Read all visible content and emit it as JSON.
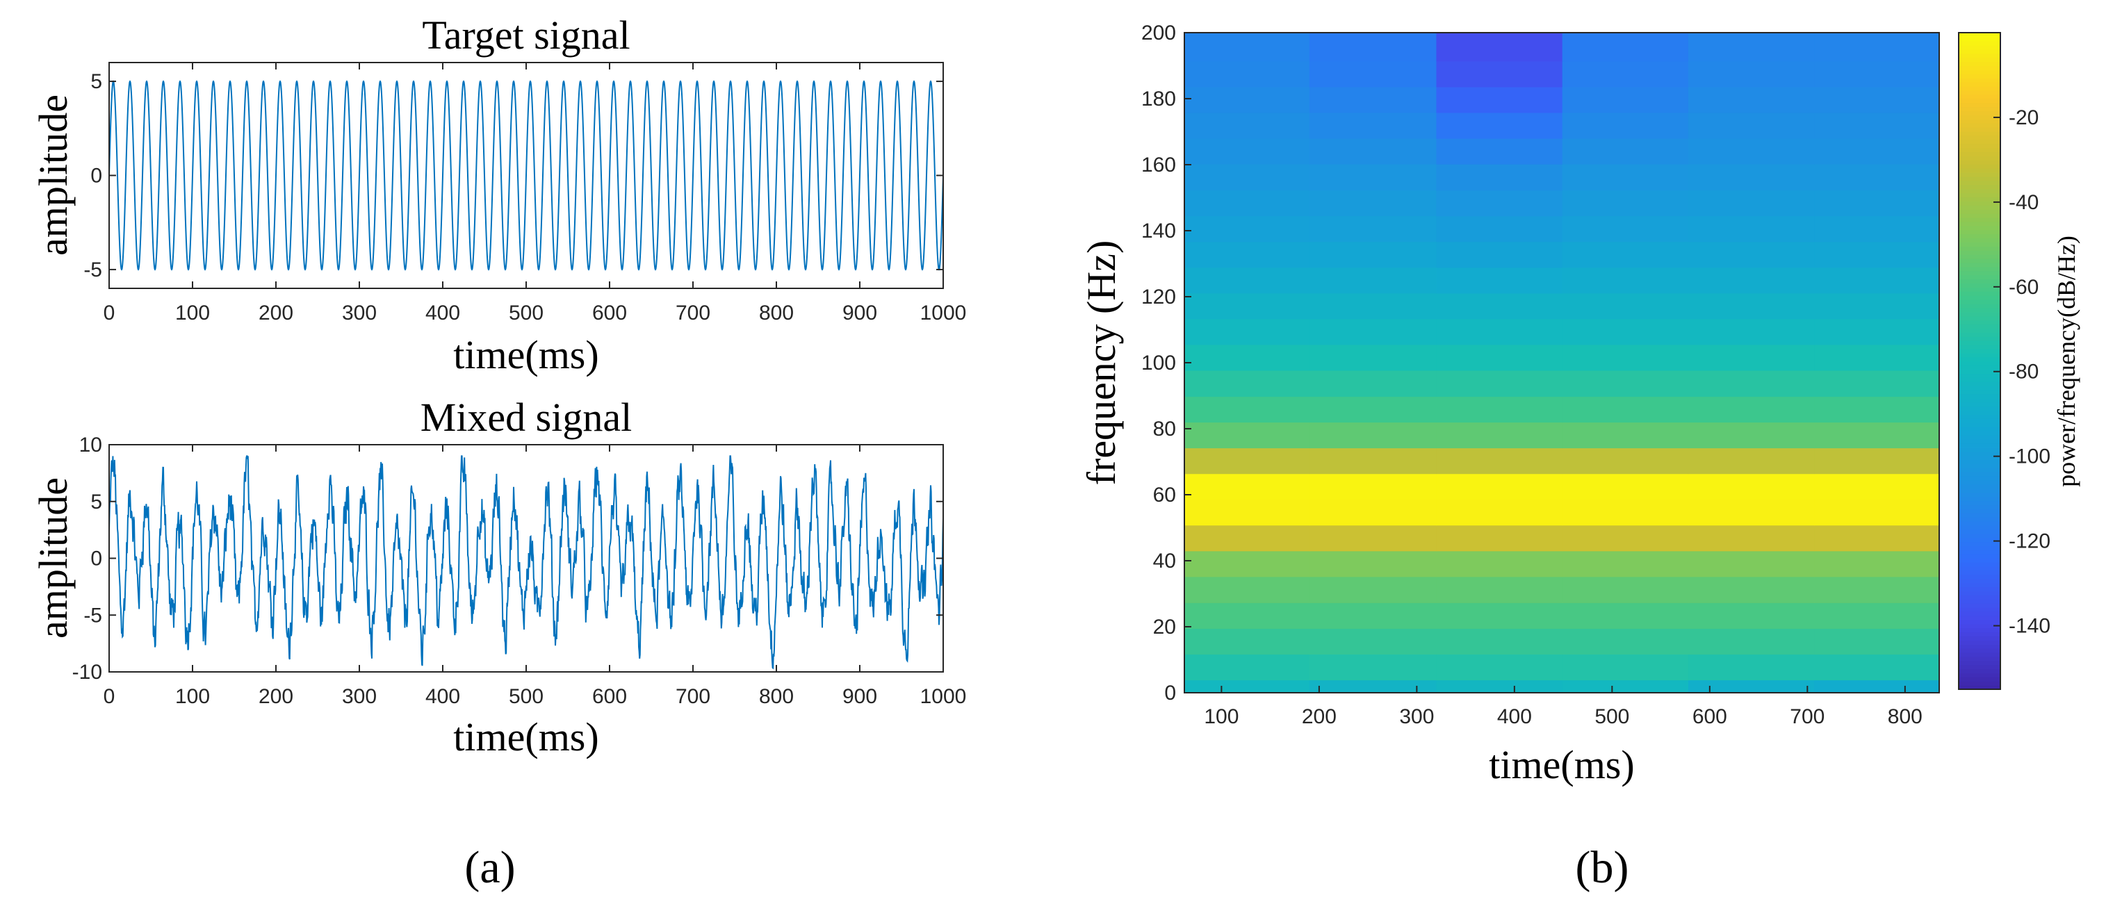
{
  "chart_data": [
    {
      "type": "line",
      "title": "Target signal",
      "xlabel": "time(ms)",
      "ylabel": "amplitude",
      "xlim": [
        0,
        1000
      ],
      "ylim": [
        -6,
        6
      ],
      "xticks": [
        "0",
        "100",
        "200",
        "300",
        "400",
        "500",
        "600",
        "700",
        "800",
        "900",
        "1000"
      ],
      "yticks": [
        "5",
        "0",
        "-5"
      ],
      "series": [
        {
          "name": "target",
          "signal": "sine",
          "amplitude": 5,
          "frequency_hz": 50,
          "color": "#0072BD"
        }
      ]
    },
    {
      "type": "line",
      "title": "Mixed signal",
      "xlabel": "time(ms)",
      "ylabel": "amplitude",
      "xlim": [
        0,
        1000
      ],
      "ylim": [
        -10,
        10
      ],
      "xticks": [
        "0",
        "100",
        "200",
        "300",
        "400",
        "500",
        "600",
        "700",
        "800",
        "900",
        "1000"
      ],
      "yticks": [
        "10",
        "5",
        "0",
        "-5",
        "-10"
      ],
      "series": [
        {
          "name": "mixed",
          "signal": "noisy multi-tone",
          "range": [
            -10,
            9
          ],
          "color": "#0072BD"
        }
      ]
    },
    {
      "type": "heatmap",
      "title": "",
      "xlabel": "time(ms)",
      "ylabel": "frequency (Hz)",
      "xlim": [
        62,
        835
      ],
      "ylim": [
        0,
        200
      ],
      "xticks": [
        "100",
        "200",
        "300",
        "400",
        "500",
        "600",
        "700",
        "800"
      ],
      "yticks": [
        "0",
        "20",
        "40",
        "60",
        "80",
        "100",
        "120",
        "140",
        "160",
        "180",
        "200"
      ],
      "time_edges": [
        62,
        190,
        320,
        449,
        578,
        707,
        835
      ],
      "freq_edges": [
        0,
        3.9,
        11.7,
        19.5,
        27.3,
        35.2,
        43,
        50.8,
        58.6,
        66.4,
        74.2,
        82,
        89.8,
        97.7,
        105.5,
        113.3,
        121.1,
        128.9,
        136.7,
        144.5,
        152.3,
        160.2,
        168,
        175.8,
        183.6,
        191.4,
        200
      ],
      "values_db": [
        [
          -82,
          -85,
          -83,
          -82,
          -88,
          -90
        ],
        [
          -73,
          -72,
          -72,
          -72,
          -73,
          -73
        ],
        [
          -66,
          -66,
          -66,
          -66,
          -66,
          -66
        ],
        [
          -60,
          -60,
          -60,
          -60,
          -60,
          -60
        ],
        [
          -55,
          -55,
          -55,
          -55,
          -55,
          -55
        ],
        [
          -48,
          -48,
          -48,
          -48,
          -48,
          -48
        ],
        [
          -30,
          -30,
          -30,
          -30,
          -30,
          -30
        ],
        [
          -3,
          -3,
          -3,
          -3,
          -3,
          -3
        ],
        [
          -2,
          -2,
          -2,
          -2,
          -2,
          -2
        ],
        [
          -33,
          -33,
          -33,
          -33,
          -33,
          -33
        ],
        [
          -55,
          -55,
          -55,
          -55,
          -55,
          -55
        ],
        [
          -63,
          -63,
          -63,
          -63,
          -63,
          -63
        ],
        [
          -70,
          -70,
          -70,
          -70,
          -70,
          -70
        ],
        [
          -76,
          -76,
          -76,
          -76,
          -76,
          -76
        ],
        [
          -82,
          -82,
          -82,
          -82,
          -82,
          -82
        ],
        [
          -86,
          -86,
          -86,
          -86,
          -86,
          -86
        ],
        [
          -90,
          -90,
          -91,
          -90,
          -90,
          -90
        ],
        [
          -94,
          -94,
          -96,
          -94,
          -94,
          -94
        ],
        [
          -97,
          -98,
          -100,
          -98,
          -97,
          -97
        ],
        [
          -100,
          -101,
          -104,
          -101,
          -100,
          -100
        ],
        [
          -103,
          -104,
          -108,
          -104,
          -103,
          -103
        ],
        [
          -106,
          -108,
          -114,
          -108,
          -106,
          -106
        ],
        [
          -108,
          -111,
          -120,
          -111,
          -108,
          -108
        ],
        [
          -110,
          -114,
          -128,
          -114,
          -110,
          -110
        ],
        [
          -112,
          -117,
          -134,
          -116,
          -112,
          -112
        ],
        [
          -113,
          -118,
          -137,
          -117,
          -113,
          -113
        ]
      ],
      "colorbar": {
        "label": "power/frequency(dB/Hz)",
        "range": [
          -155,
          0
        ],
        "ticks": [
          "-20",
          "-40",
          "-60",
          "-80",
          "-100",
          "-120",
          "-140"
        ]
      }
    }
  ],
  "panel_labels": {
    "left": "(a)",
    "right": "(b)"
  }
}
